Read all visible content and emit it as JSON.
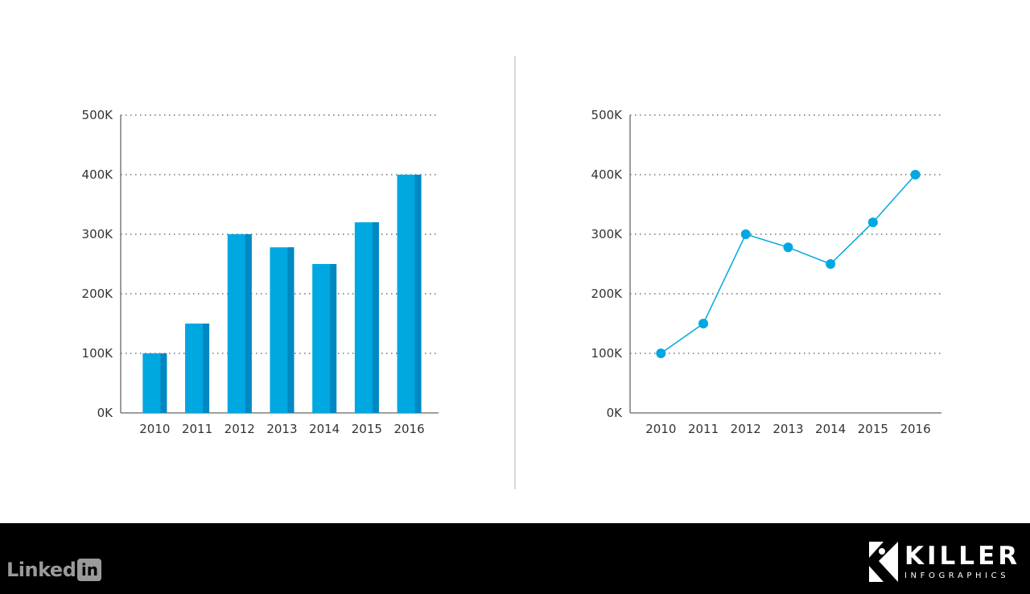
{
  "chart_data": [
    {
      "type": "bar",
      "categories": [
        "2010",
        "2011",
        "2012",
        "2013",
        "2014",
        "2015",
        "2016"
      ],
      "values": [
        100000,
        150000,
        300000,
        278000,
        250000,
        320000,
        400000
      ],
      "yticks": [
        "0K",
        "100K",
        "200K",
        "300K",
        "400K",
        "500K"
      ],
      "ylim": [
        0,
        500000
      ],
      "grid": true,
      "title": "",
      "xlabel": "",
      "ylabel": ""
    },
    {
      "type": "line",
      "categories": [
        "2010",
        "2011",
        "2012",
        "2013",
        "2014",
        "2015",
        "2016"
      ],
      "values": [
        100000,
        150000,
        300000,
        278000,
        250000,
        320000,
        400000
      ],
      "yticks": [
        "0K",
        "100K",
        "200K",
        "300K",
        "400K",
        "500K"
      ],
      "ylim": [
        0,
        500000
      ],
      "grid": true,
      "title": "",
      "xlabel": "",
      "ylabel": ""
    }
  ],
  "colors": {
    "bar": "#00a8e1",
    "bar_side": "#0088c2",
    "line": "#00a8e1",
    "axis": "#666666",
    "grid": "#555555",
    "divider": "#cccccc"
  },
  "footer": {
    "left_logo_text": "Linked",
    "left_logo_box": "in",
    "right_logo_big": "KILLER",
    "right_logo_small": "INFOGRAPHICS"
  }
}
